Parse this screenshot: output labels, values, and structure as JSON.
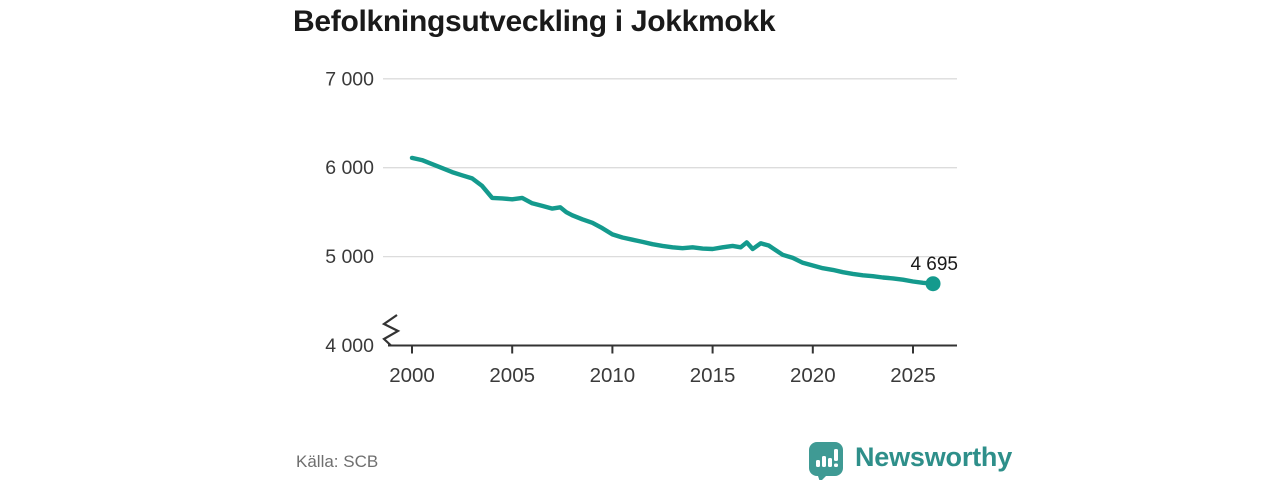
{
  "header": {
    "title": "Befolkningsutveckling i Jokkmokk"
  },
  "footer": {
    "source": "Källa: SCB",
    "brand": "Newsworthy",
    "brand_color": "#2e8f8a",
    "brand_icon": "bar-chart-speech-bubble",
    "brand_icon_color": "#3f9a94"
  },
  "chart_data": {
    "type": "line",
    "title": "Befolkningsutveckling i Jokkmokk",
    "xlabel": "",
    "ylabel": "",
    "x": [
      2000,
      2000.5,
      2001,
      2001.5,
      2002,
      2002.5,
      2003,
      2003.5,
      2004,
      2004.5,
      2005,
      2005.5,
      2006,
      2006.5,
      2007,
      2007.4,
      2007.7,
      2008,
      2008.5,
      2009,
      2009.5,
      2010,
      2010.5,
      2011,
      2011.5,
      2012,
      2012.5,
      2013,
      2013.5,
      2014,
      2014.5,
      2015,
      2015.5,
      2016,
      2016.4,
      2016.7,
      2017,
      2017.4,
      2017.8,
      2018,
      2018.5,
      2019,
      2019.5,
      2020,
      2020.5,
      2021,
      2021.5,
      2022,
      2022.5,
      2023,
      2023.5,
      2024,
      2024.5,
      2025,
      2025.5,
      2026
    ],
    "series": [
      {
        "name": "Befolkning",
        "color": "#149a8d",
        "values": [
          6110,
          6085,
          6040,
          5995,
          5950,
          5915,
          5880,
          5795,
          5660,
          5655,
          5645,
          5660,
          5600,
          5570,
          5540,
          5555,
          5500,
          5465,
          5420,
          5380,
          5320,
          5250,
          5215,
          5190,
          5165,
          5140,
          5120,
          5105,
          5095,
          5105,
          5090,
          5085,
          5105,
          5120,
          5105,
          5160,
          5085,
          5150,
          5125,
          5095,
          5020,
          4985,
          4930,
          4900,
          4870,
          4850,
          4825,
          4805,
          4790,
          4780,
          4765,
          4755,
          4740,
          4720,
          4705,
          4695
        ]
      }
    ],
    "last_point": {
      "x": 2026,
      "value": 4695
    },
    "end_label": "4 695",
    "yticks": [
      {
        "value": 4000,
        "label": "4 000"
      },
      {
        "value": 5000,
        "label": "5 000"
      },
      {
        "value": 6000,
        "label": "6 000"
      },
      {
        "value": 7000,
        "label": "7 000"
      }
    ],
    "xticks": [
      {
        "value": 2000,
        "label": "2000"
      },
      {
        "value": 2005,
        "label": "2005"
      },
      {
        "value": 2010,
        "label": "2010"
      },
      {
        "value": 2015,
        "label": "2015"
      },
      {
        "value": 2020,
        "label": "2020"
      },
      {
        "value": 2025,
        "label": "2025"
      }
    ],
    "ylim": [
      4000,
      7000
    ],
    "xlim": [
      2000,
      2026
    ],
    "axis_break": true,
    "grid": true,
    "legend": "none",
    "colors": {
      "line": "#149a8d",
      "grid": "#dcdcdc",
      "axis": "#333333",
      "tick_text": "#3a3a3a"
    }
  }
}
